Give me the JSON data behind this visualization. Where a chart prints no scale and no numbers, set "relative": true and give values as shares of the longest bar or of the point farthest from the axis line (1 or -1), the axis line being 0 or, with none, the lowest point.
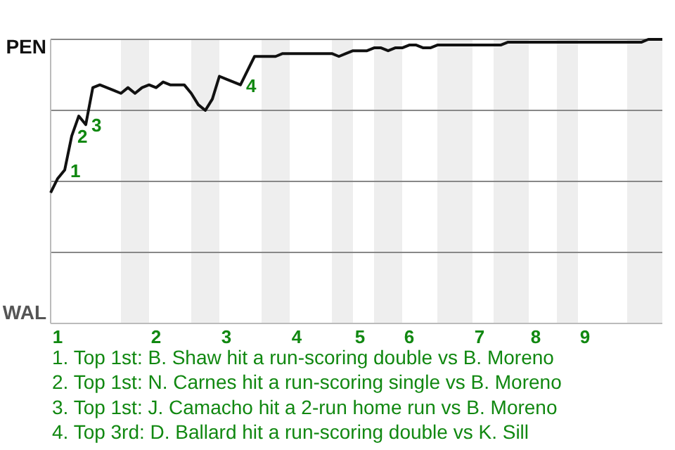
{
  "chart_data": {
    "type": "line",
    "relative": true,
    "categories": [
      null,
      "1",
      null,
      null,
      null,
      null,
      null,
      null,
      null,
      null,
      null,
      null,
      null,
      null,
      null,
      "2",
      null,
      null,
      null,
      null,
      null,
      null,
      null,
      null,
      null,
      "3",
      null,
      null,
      null,
      null,
      null,
      null,
      null,
      null,
      null,
      "4",
      null,
      null,
      null,
      null,
      null,
      null,
      null,
      null,
      "5",
      null,
      null,
      null,
      null,
      null,
      null,
      "6",
      null,
      null,
      null,
      null,
      null,
      null,
      null,
      null,
      null,
      "7",
      null,
      null,
      null,
      null,
      null,
      null,
      null,
      "8",
      null,
      null,
      null,
      null,
      null,
      null,
      "9",
      null,
      null,
      null,
      null,
      null,
      null,
      null,
      null,
      null,
      null,
      null
    ],
    "marker": "none",
    "line_style": "solid",
    "ref_lines": [
      {
        "axis": "y",
        "value": 0.25,
        "color": "#888888"
      },
      {
        "axis": "y",
        "value": 0.5,
        "color": "#888888"
      },
      {
        "axis": "y",
        "value": 0.75,
        "color": "#888888"
      }
    ],
    "series": [
      {
        "color": "#111111",
        "values": [
          0.46,
          0.51,
          0.54,
          0.66,
          0.73,
          0.7,
          0.83,
          0.84,
          0.83,
          0.82,
          0.81,
          0.83,
          0.81,
          0.83,
          0.84,
          0.83,
          0.85,
          0.84,
          0.84,
          0.84,
          0.81,
          0.77,
          0.75,
          0.79,
          0.87,
          0.86,
          0.85,
          0.84,
          0.89,
          0.94,
          0.94,
          0.94,
          0.94,
          0.95,
          0.95,
          0.95,
          0.95,
          0.95,
          0.95,
          0.95,
          0.95,
          0.94,
          0.95,
          0.96,
          0.96,
          0.96,
          0.97,
          0.97,
          0.96,
          0.97,
          0.97,
          0.98,
          0.98,
          0.97,
          0.97,
          0.98,
          0.98,
          0.98,
          0.98,
          0.98,
          0.98,
          0.98,
          0.98,
          0.98,
          0.98,
          0.99,
          0.99,
          0.99,
          0.99,
          0.99,
          0.99,
          0.99,
          0.99,
          0.99,
          0.99,
          0.99,
          0.99,
          0.99,
          0.99,
          0.99,
          0.99,
          0.99,
          0.99,
          0.99,
          0.99,
          1,
          1,
          1
        ]
      }
    ],
    "annotations": [
      "PEN",
      "WAL",
      "1",
      "2",
      "3",
      "4",
      "1. Top 1st: B. Shaw hit a run-scoring double vs B. Moreno",
      "2. Top 1st: N. Carnes hit a run-scoring single vs B. Moreno",
      "3. Top 1st: J. Camacho hit a 2-run home run vs B. Moreno",
      "4. Top 3rd: D. Ballard hit a run-scoring double vs K. Sill"
    ]
  }
}
